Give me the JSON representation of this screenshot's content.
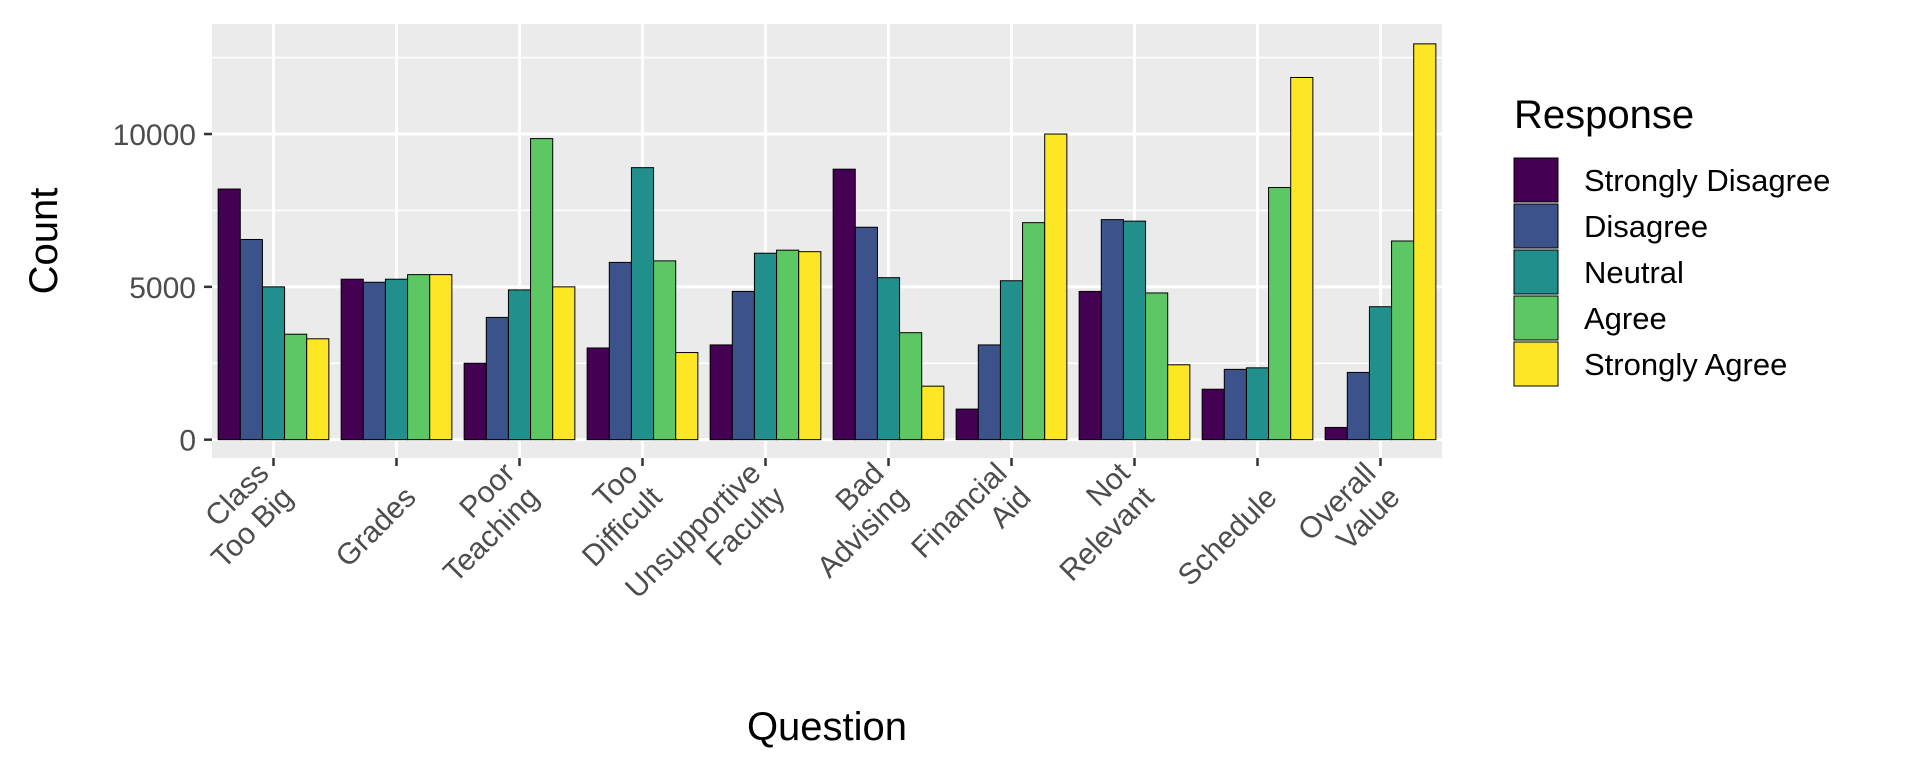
{
  "chart_data": {
    "type": "bar",
    "xlabel": "Question",
    "ylabel": "Count",
    "ylim": [
      -600,
      13600
    ],
    "yticks": [
      0,
      5000,
      10000
    ],
    "grid": true,
    "legend_position": "right",
    "categories": [
      [
        "Class",
        "Too Big"
      ],
      [
        "Grades"
      ],
      [
        "Poor",
        "Teaching"
      ],
      [
        "Too",
        "Difficult"
      ],
      [
        "Unsupportive",
        "Faculty"
      ],
      [
        "Bad",
        "Advising"
      ],
      [
        "Financial",
        "Aid"
      ],
      [
        "Not",
        "Relevant"
      ],
      [
        "Schedule"
      ],
      [
        "Overall",
        "Value"
      ]
    ],
    "legend_title": "Response",
    "series": [
      {
        "name": "Strongly Disagree",
        "color": "#440154",
        "values": [
          8200,
          5250,
          2500,
          3000,
          3100,
          8850,
          1000,
          4850,
          1650,
          400
        ]
      },
      {
        "name": "Disagree",
        "color": "#3B528B",
        "values": [
          6550,
          5150,
          4000,
          5800,
          4850,
          6950,
          3100,
          7200,
          2300,
          2200
        ]
      },
      {
        "name": "Neutral",
        "color": "#21908C",
        "values": [
          5000,
          5250,
          4900,
          8900,
          6100,
          5300,
          5200,
          7150,
          2350,
          4350
        ]
      },
      {
        "name": "Agree",
        "color": "#5DC863",
        "values": [
          3450,
          5400,
          9850,
          5850,
          6200,
          3500,
          7100,
          4800,
          8250,
          6500
        ]
      },
      {
        "name": "Strongly Agree",
        "color": "#FDE725",
        "values": [
          3300,
          5400,
          5000,
          2850,
          6150,
          1750,
          10000,
          2450,
          11850,
          12950
        ]
      }
    ]
  }
}
